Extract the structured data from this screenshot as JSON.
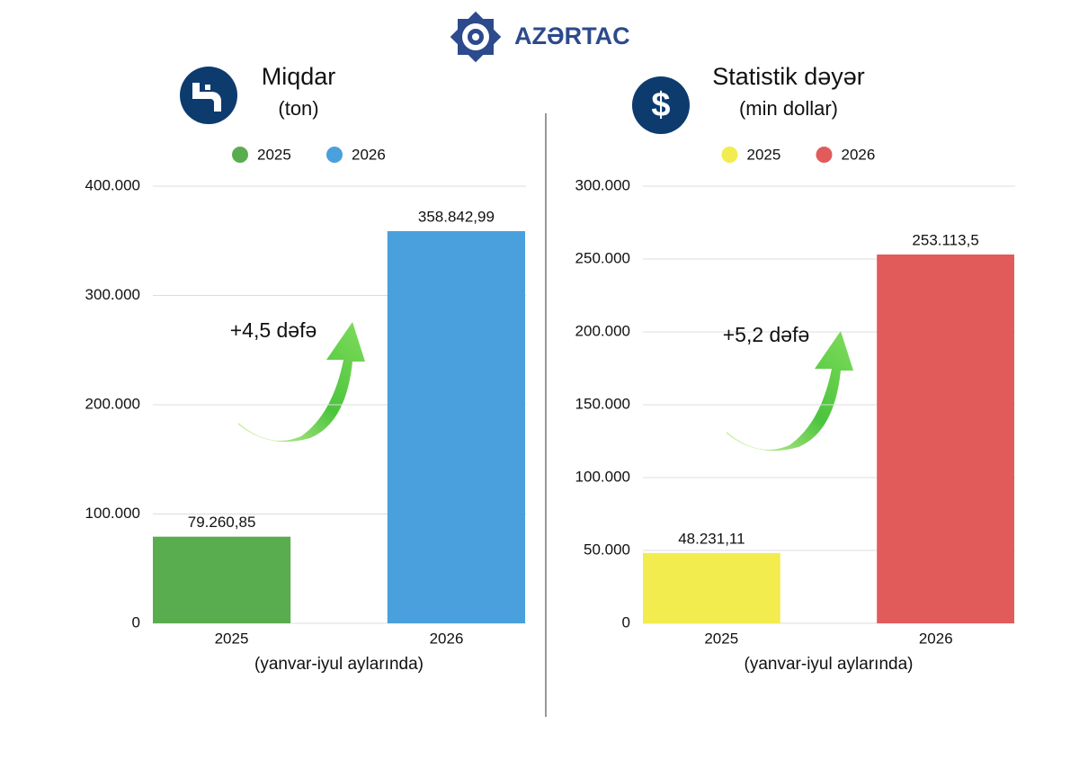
{
  "logo_text": "AZƏRTAC",
  "chart_data": [
    {
      "type": "bar",
      "title": "Miqdar",
      "subtitle": "(ton)",
      "x_label": "(yanvar-iyul aylarında)",
      "annotation": "+4,5 dəfə",
      "categories": [
        "2025",
        "2026"
      ],
      "series": [
        {
          "name": "2025",
          "color": "#5aad4e",
          "values": [
            79260.85,
            null
          ],
          "value_labels": [
            "79.260,85",
            null
          ]
        },
        {
          "name": "2026",
          "color": "#4aa0dc",
          "values": [
            null,
            358842.99
          ],
          "value_labels": [
            null,
            "358.842,99"
          ]
        }
      ],
      "ylim": [
        0,
        400000
      ],
      "yticks": [
        0,
        {
          "value": 100000,
          "label": "100.000"
        },
        {
          "value": 200000,
          "label": "200.000"
        },
        {
          "value": 300000,
          "label": "300.000"
        },
        {
          "value": 400000,
          "label": "400.000"
        }
      ],
      "grid": true
    },
    {
      "type": "bar",
      "title": "Statistik dəyər",
      "subtitle": "(min dollar)",
      "x_label": "(yanvar-iyul aylarında)",
      "annotation": "+5,2 dəfə",
      "categories": [
        "2025",
        "2026"
      ],
      "series": [
        {
          "name": "2025",
          "color": "#f2ec4f",
          "values": [
            48231.11,
            null
          ],
          "value_labels": [
            "48.231,11",
            null
          ]
        },
        {
          "name": "2026",
          "color": "#e15b5b",
          "values": [
            null,
            253113.5
          ],
          "value_labels": [
            null,
            "253.113,5"
          ]
        }
      ],
      "ylim": [
        0,
        300000
      ],
      "yticks": [
        0,
        {
          "value": 50000,
          "label": "50.000"
        },
        {
          "value": 100000,
          "label": "100.000"
        },
        {
          "value": 150000,
          "label": "150.000"
        },
        {
          "value": 200000,
          "label": "200.000"
        },
        {
          "value": 250000,
          "label": "250.000"
        },
        {
          "value": 300000,
          "label": "300.000"
        }
      ],
      "grid": true
    }
  ]
}
